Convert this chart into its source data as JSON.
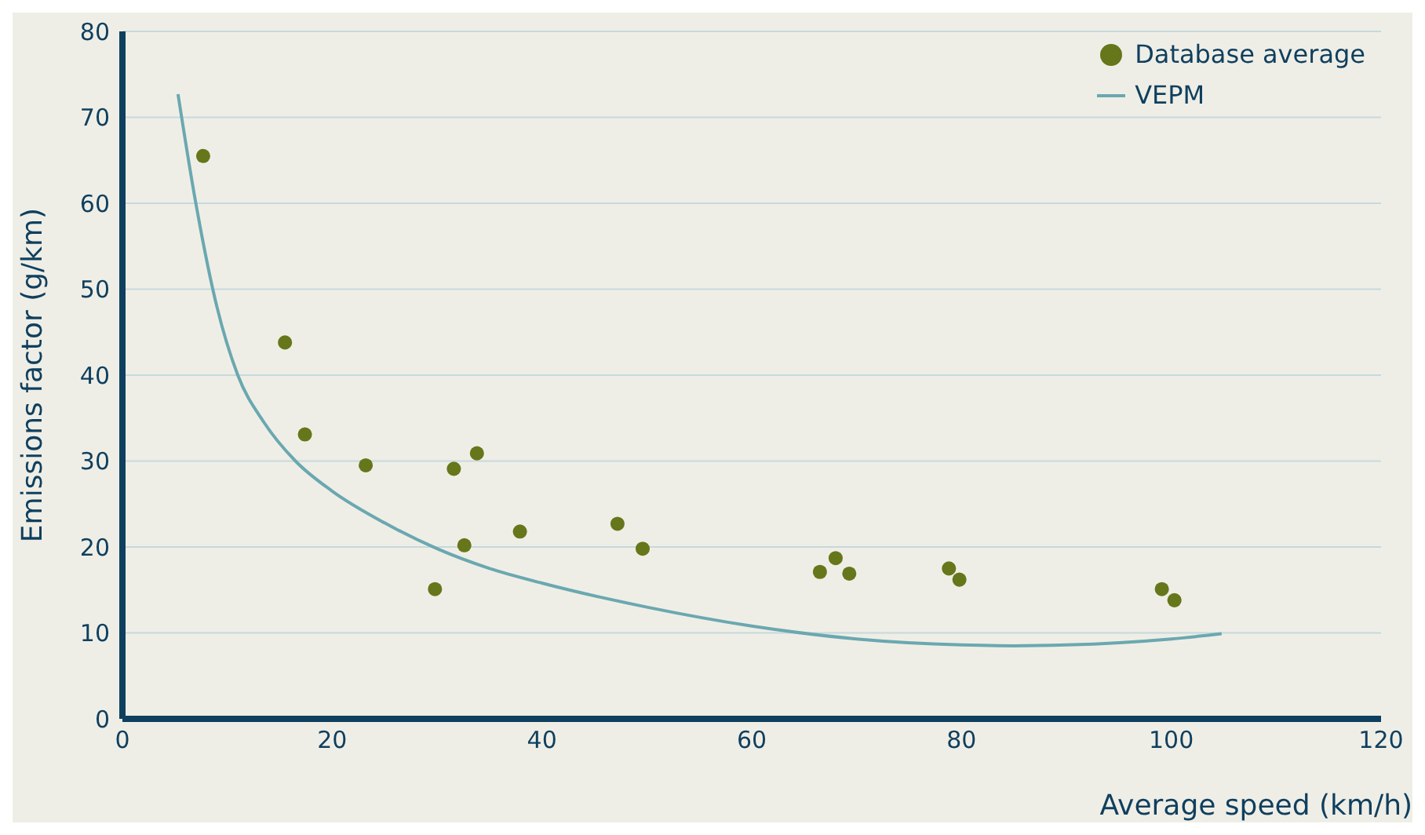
{
  "chart_data": {
    "type": "scatter",
    "xlabel": "Average speed (km/h)",
    "ylabel": "Emissions factor (g/km)",
    "xlim": [
      0,
      120
    ],
    "xticks": [
      0,
      20,
      40,
      60,
      80,
      100,
      120
    ],
    "ylim": [
      0,
      80
    ],
    "yticks": [
      0,
      10,
      20,
      30,
      40,
      50,
      60,
      70,
      80
    ],
    "grid": "y",
    "legend": "top right",
    "marker": "circle",
    "series": [
      {
        "name": "Database average",
        "color": "#66761a",
        "x": [
          7.7,
          15.5,
          17.4,
          23.2,
          29.8,
          31.6,
          32.6,
          33.8,
          37.9,
          47.2,
          49.6,
          66.5,
          68.0,
          69.3,
          78.8,
          79.8,
          99.1,
          100.3
        ],
        "values": [
          65.5,
          43.8,
          33.1,
          29.5,
          15.1,
          29.1,
          20.2,
          30.9,
          21.8,
          22.7,
          19.8,
          17.1,
          18.7,
          16.9,
          17.5,
          16.2,
          15.1,
          13.8
        ]
      },
      {
        "name": "VEPM",
        "type": "line",
        "color": "#6aa8b0",
        "marker": "none",
        "x": [
          5.3,
          7,
          9,
          11,
          13.5,
          16.5,
          20,
          25,
          30,
          35,
          40,
          50,
          60,
          70,
          80,
          85,
          90,
          100,
          104.8
        ],
        "values": [
          72.7,
          60,
          48,
          40,
          34.5,
          30,
          26.5,
          22.8,
          19.8,
          17.5,
          15.8,
          13,
          10.8,
          9.3,
          8.6,
          8.5,
          8.6,
          9.3,
          9.9
        ]
      }
    ]
  }
}
